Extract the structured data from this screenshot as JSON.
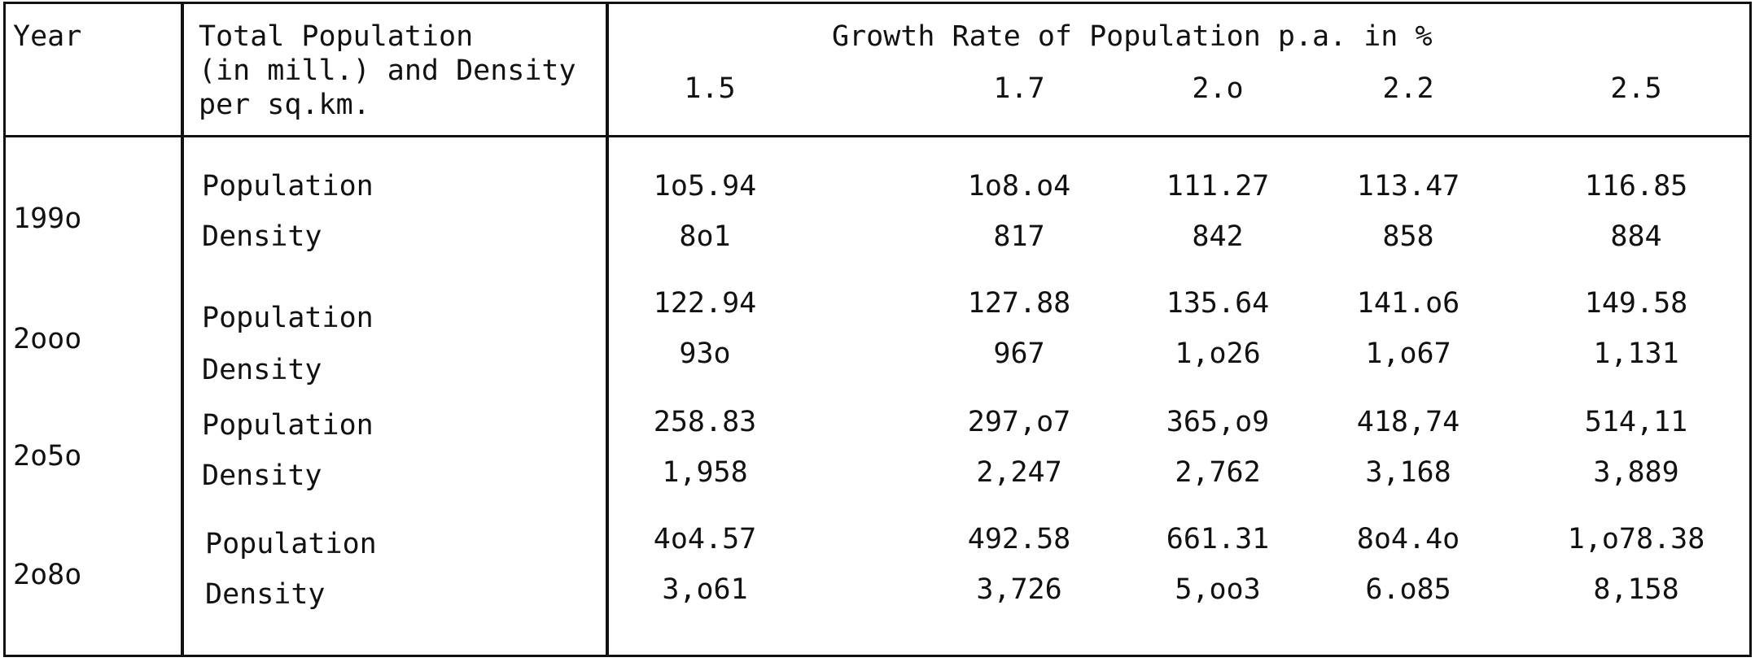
{
  "table": {
    "header": {
      "year": "Year",
      "total_line1": "Total Population",
      "total_line2": "(in mill.) and Density",
      "total_line3": "per sq.km.",
      "growth_title": "Growth Rate of Population p.a. in %",
      "rates": [
        "1.5",
        "1.7",
        "2.o",
        "2.2",
        "2.5"
      ]
    },
    "rows": [
      {
        "year": "199o",
        "population_label": "Population",
        "density_label": "Density",
        "population": [
          "1o5.94",
          "1o8.o4",
          "111.27",
          "113.47",
          "116.85"
        ],
        "density": [
          "8o1",
          "817",
          "842",
          "858",
          "884"
        ]
      },
      {
        "year": "2ooo",
        "population_label": "Population",
        "density_label": "Density",
        "population": [
          "122.94",
          "127.88",
          "135.64",
          "141.o6",
          "149.58"
        ],
        "density": [
          "93o",
          "967",
          "1,o26",
          "1,o67",
          "1,131"
        ]
      },
      {
        "year": "2o5o",
        "population_label": "Population",
        "density_label": "Density",
        "population": [
          "258.83",
          "297,o7",
          "365,o9",
          "418,74",
          "514,11"
        ],
        "density": [
          "1,958",
          "2,247",
          "2,762",
          "3,168",
          "3,889"
        ]
      },
      {
        "year": "2o8o",
        "population_label": "Population",
        "density_label": "Density",
        "population": [
          "4o4.57",
          "492.58",
          "661.31",
          "8o4.4o",
          "1,o78.38"
        ],
        "density": [
          "3,o61",
          "3,726",
          "5,oo3",
          "6.o85",
          "8,158"
        ]
      }
    ]
  }
}
